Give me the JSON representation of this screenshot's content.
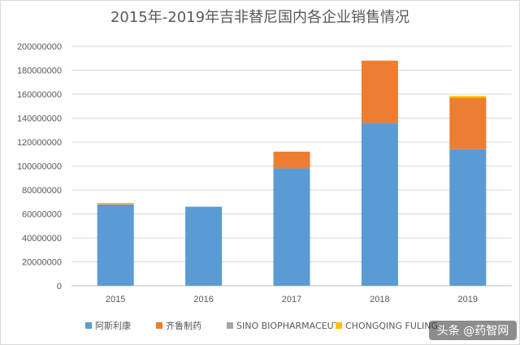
{
  "chart_data": {
    "type": "bar",
    "stacked": true,
    "title": "2015年-2019年吉非替尼国内各企业销售情况",
    "xlabel": "",
    "ylabel": "",
    "categories": [
      "2015",
      "2016",
      "2017",
      "2018",
      "2019"
    ],
    "ylim": [
      0,
      200000000
    ],
    "yticks": [
      "0",
      "20000000",
      "40000000",
      "60000000",
      "80000000",
      "100000000",
      "120000000",
      "140000000",
      "160000000",
      "180000000",
      "200000000"
    ],
    "grid": true,
    "legend_position": "bottom",
    "series": [
      {
        "name": "阿斯利康",
        "color": "#5b9bd5",
        "values": [
          68000000,
          66000000,
          98000000,
          136000000,
          114000000
        ]
      },
      {
        "name": "齐鲁制药",
        "color": "#ed7d31",
        "values": [
          0,
          0,
          14000000,
          52000000,
          43000000
        ]
      },
      {
        "name": "SINO BIOPHARMACEUT",
        "color": "#a5a5a5",
        "values": [
          0,
          0,
          0,
          0,
          0
        ]
      },
      {
        "name": "CHONGQING FULING",
        "color": "#ffc000",
        "values": [
          1200000,
          0,
          0,
          0,
          1500000
        ]
      }
    ]
  },
  "watermark": "头条 @药智网"
}
